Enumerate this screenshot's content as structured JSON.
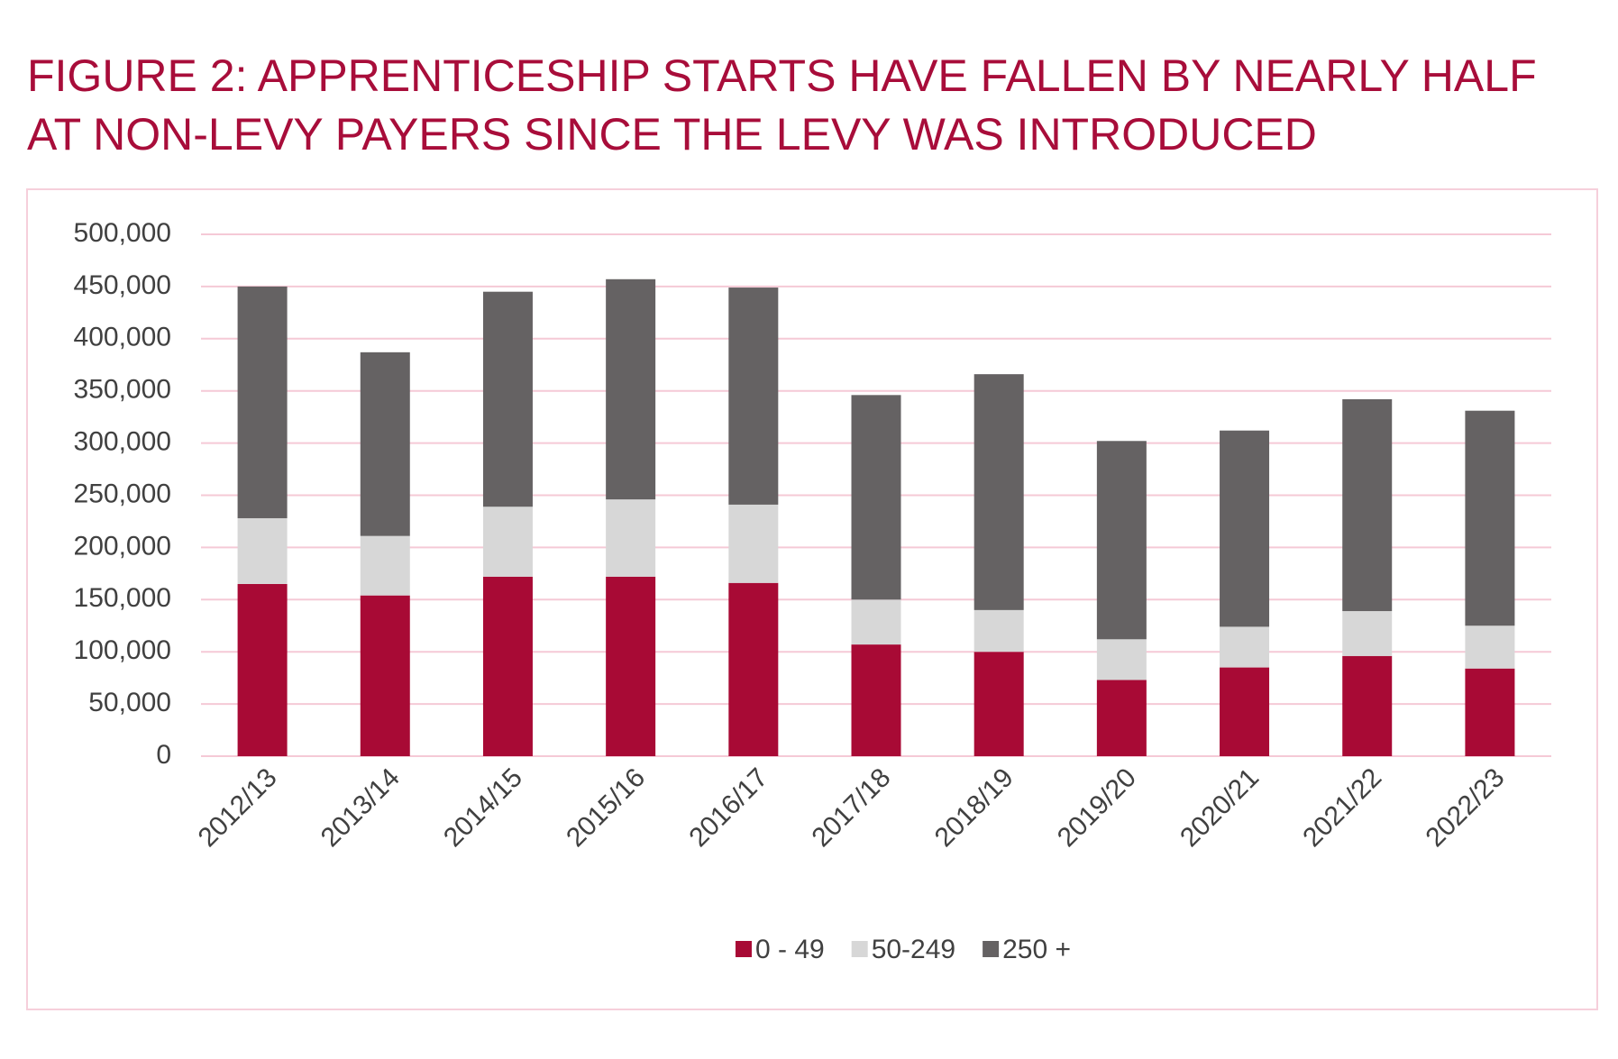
{
  "chart_data": {
    "type": "stacked_bar",
    "title": [
      "FIGURE 2: APPRENTICESHIP STARTS HAVE FALLEN BY NEARLY HALF",
      "AT NON-LEVY PAYERS SINCE THE LEVY WAS INTRODUCED"
    ],
    "categories": [
      "2012/13",
      "2013/14",
      "2014/15",
      "2015/16",
      "2016/17",
      "2017/18",
      "2018/19",
      "2019/20",
      "2020/21",
      "2021/22",
      "2022/23"
    ],
    "series": [
      {
        "name": "0 - 49",
        "color": "#a80a35",
        "values": [
          165000,
          154000,
          172000,
          172000,
          166000,
          107000,
          100000,
          73000,
          85000,
          96000,
          84000
        ]
      },
      {
        "name": "50-249",
        "color": "#d7d7d7",
        "values": [
          63000,
          57000,
          67000,
          74000,
          75000,
          43000,
          40000,
          39000,
          39000,
          43000,
          41000
        ]
      },
      {
        "name": "250 +",
        "color": "#656263",
        "values": [
          222000,
          176000,
          206000,
          211000,
          208000,
          196000,
          226000,
          190000,
          188000,
          203000,
          206000
        ]
      }
    ],
    "ylim": [
      0,
      500000
    ],
    "yticks": [
      0,
      {
        "value": 50000,
        "label": "50,000"
      },
      {
        "value": 100000,
        "label": "100,000"
      },
      {
        "value": 150000,
        "label": "150,000"
      },
      {
        "value": 200000,
        "label": "200,000"
      },
      {
        "value": 250000,
        "label": "250,000"
      },
      {
        "value": 300000,
        "label": "300,000"
      },
      {
        "value": 350000,
        "label": "350,000"
      },
      {
        "value": 400000,
        "label": "400,000"
      },
      {
        "value": 450000,
        "label": "450,000"
      },
      {
        "value": 500000,
        "label": "500,000"
      }
    ],
    "grid": true,
    "legend": "bottom"
  }
}
